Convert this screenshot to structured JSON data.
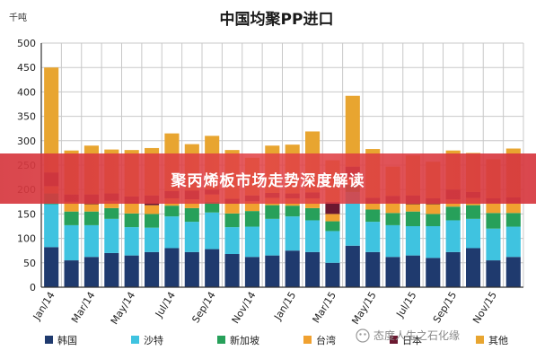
{
  "chart_data": {
    "type": "bar",
    "stacked": true,
    "title": "中国均聚PP进口",
    "ylabel": "千吨",
    "ylim": [
      0,
      500
    ],
    "yticks": [
      0,
      50,
      100,
      150,
      200,
      250,
      300,
      350,
      400,
      450,
      500
    ],
    "grid": true,
    "legend_position": "bottom",
    "categories": [
      "Jan/14",
      "Feb/14",
      "Mar/14",
      "Apr/14",
      "May/14",
      "Jun/14",
      "Jul/14",
      "Aug/14",
      "Sep/14",
      "Oct/14",
      "Nov/14",
      "Dec/14",
      "Jan/15",
      "Feb/15",
      "Mar/15",
      "Apr/15",
      "May/15",
      "Jun/15",
      "Jul/15",
      "Aug/15",
      "Sep/15",
      "Oct/15",
      "Nov/15",
      "Dec/15"
    ],
    "x_tick_labels": [
      "Jan/14",
      "Mar/14",
      "May/14",
      "Jul/14",
      "Sep/14",
      "Nov/14",
      "Jan/15",
      "Mar/15",
      "May/15",
      "Jul/15",
      "Sep/15",
      "Nov/15"
    ],
    "series": [
      {
        "name": "韩国",
        "color": "#1f3a6e",
        "values": [
          82,
          55,
          62,
          70,
          65,
          72,
          80,
          72,
          78,
          68,
          62,
          65,
          75,
          72,
          50,
          85,
          72,
          62,
          65,
          60,
          72,
          80,
          55,
          62
        ]
      },
      {
        "name": "沙特",
        "color": "#3fc3e0",
        "values": [
          88,
          72,
          65,
          70,
          58,
          50,
          65,
          62,
          75,
          55,
          62,
          75,
          70,
          65,
          65,
          110,
          62,
          65,
          60,
          65,
          65,
          60,
          65,
          62
        ]
      },
      {
        "name": "新加坡",
        "color": "#27a05a",
        "values": [
          22,
          28,
          28,
          22,
          28,
          28,
          22,
          28,
          22,
          28,
          32,
          28,
          22,
          25,
          20,
          15,
          25,
          25,
          30,
          25,
          28,
          28,
          32,
          28
        ]
      },
      {
        "name": "台湾",
        "color": "#f0a130",
        "values": [
          15,
          20,
          15,
          15,
          20,
          18,
          15,
          18,
          15,
          20,
          20,
          15,
          15,
          20,
          15,
          15,
          12,
          20,
          15,
          20,
          15,
          15,
          20,
          20
        ]
      },
      {
        "name": "日本",
        "color": "#6b1830",
        "values": [
          28,
          15,
          20,
          15,
          15,
          20,
          15,
          18,
          10,
          10,
          12,
          10,
          10,
          12,
          25,
          22,
          12,
          15,
          18,
          12,
          20,
          12,
          10,
          12
        ]
      },
      {
        "name": "其他",
        "color": "#e8a530",
        "values": [
          215,
          90,
          100,
          90,
          95,
          97,
          118,
          95,
          110,
          100,
          77,
          97,
          100,
          125,
          85,
          145,
          100,
          60,
          82,
          75,
          80,
          80,
          80,
          100
        ]
      }
    ]
  },
  "banner": {
    "headline": "聚丙烯板市场走势深度解读"
  },
  "watermark": {
    "text": "态度人生之石化缘"
  }
}
